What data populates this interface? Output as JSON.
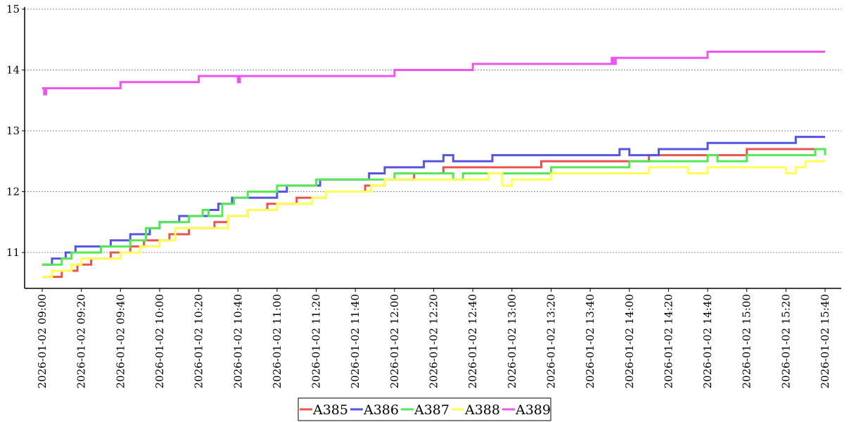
{
  "chart_data": {
    "type": "line",
    "title": "",
    "xlabel": "",
    "ylabel": "",
    "ylim": [
      10.4,
      15
    ],
    "y_ticks": [
      "11",
      "12",
      "13",
      "14",
      "15"
    ],
    "x_ticks": [
      "2026-01-02 09:00",
      "2026-01-02 09:20",
      "2026-01-02 09:40",
      "2026-01-02 10:00",
      "2026-01-02 10:20",
      "2026-01-02 10:40",
      "2026-01-02 11:00",
      "2026-01-02 11:20",
      "2026-01-02 11:40",
      "2026-01-02 12:00",
      "2026-01-02 12:20",
      "2026-01-02 12:40",
      "2026-01-02 13:00",
      "2026-01-02 13:20",
      "2026-01-02 13:40",
      "2026-01-02 14:00",
      "2026-01-02 14:20",
      "2026-01-02 14:40",
      "2026-01-02 15:00",
      "2026-01-02 15:20",
      "2026-01-02 15:40"
    ],
    "grid": "horizontal dotted",
    "legend_position": "bottom-center",
    "series": [
      {
        "name": "A385",
        "color": "#e8554e",
        "points": [
          [
            "2026-01-02 09:00",
            10.6
          ],
          [
            "2026-01-02 09:10",
            10.7
          ],
          [
            "2026-01-02 09:18",
            10.8
          ],
          [
            "2026-01-02 09:25",
            10.9
          ],
          [
            "2026-01-02 09:35",
            11.0
          ],
          [
            "2026-01-02 09:45",
            11.1
          ],
          [
            "2026-01-02 09:52",
            11.2
          ],
          [
            "2026-01-02 10:00",
            11.2
          ],
          [
            "2026-01-02 10:05",
            11.3
          ],
          [
            "2026-01-02 10:15",
            11.4
          ],
          [
            "2026-01-02 10:28",
            11.5
          ],
          [
            "2026-01-02 10:35",
            11.6
          ],
          [
            "2026-01-02 10:45",
            11.7
          ],
          [
            "2026-01-02 10:55",
            11.8
          ],
          [
            "2026-01-02 11:10",
            11.9
          ],
          [
            "2026-01-02 11:25",
            12.0
          ],
          [
            "2026-01-02 11:45",
            12.1
          ],
          [
            "2026-01-02 11:55",
            12.2
          ],
          [
            "2026-01-02 12:10",
            12.3
          ],
          [
            "2026-01-02 12:25",
            12.4
          ],
          [
            "2026-01-02 13:00",
            12.4
          ],
          [
            "2026-01-02 13:15",
            12.5
          ],
          [
            "2026-01-02 13:45",
            12.5
          ],
          [
            "2026-01-02 14:10",
            12.6
          ],
          [
            "2026-01-02 14:40",
            12.6
          ],
          [
            "2026-01-02 15:00",
            12.7
          ],
          [
            "2026-01-02 15:40",
            12.7
          ]
        ]
      },
      {
        "name": "A386",
        "color": "#5555e0",
        "points": [
          [
            "2026-01-02 09:00",
            10.8
          ],
          [
            "2026-01-02 09:05",
            10.9
          ],
          [
            "2026-01-02 09:12",
            11.0
          ],
          [
            "2026-01-02 09:17",
            11.1
          ],
          [
            "2026-01-02 09:30",
            11.1
          ],
          [
            "2026-01-02 09:35",
            11.2
          ],
          [
            "2026-01-02 09:45",
            11.3
          ],
          [
            "2026-01-02 09:55",
            11.4
          ],
          [
            "2026-01-02 10:00",
            11.5
          ],
          [
            "2026-01-02 10:10",
            11.6
          ],
          [
            "2026-01-02 10:25",
            11.7
          ],
          [
            "2026-01-02 10:30",
            11.8
          ],
          [
            "2026-01-02 10:37",
            11.9
          ],
          [
            "2026-01-02 11:00",
            12.0
          ],
          [
            "2026-01-02 11:05",
            12.1
          ],
          [
            "2026-01-02 11:22",
            12.2
          ],
          [
            "2026-01-02 11:40",
            12.2
          ],
          [
            "2026-01-02 11:47",
            12.3
          ],
          [
            "2026-01-02 11:55",
            12.4
          ],
          [
            "2026-01-02 12:15",
            12.5
          ],
          [
            "2026-01-02 12:25",
            12.6
          ],
          [
            "2026-01-02 12:30",
            12.5
          ],
          [
            "2026-01-02 12:45",
            12.5
          ],
          [
            "2026-01-02 12:50",
            12.6
          ],
          [
            "2026-01-02 13:20",
            12.6
          ],
          [
            "2026-01-02 13:55",
            12.7
          ],
          [
            "2026-01-02 14:00",
            12.6
          ],
          [
            "2026-01-02 14:15",
            12.7
          ],
          [
            "2026-01-02 14:35",
            12.7
          ],
          [
            "2026-01-02 14:40",
            12.8
          ],
          [
            "2026-01-02 15:20",
            12.8
          ],
          [
            "2026-01-02 15:25",
            12.9
          ],
          [
            "2026-01-02 15:40",
            12.9
          ]
        ]
      },
      {
        "name": "A387",
        "color": "#55e855",
        "points": [
          [
            "2026-01-02 09:00",
            10.8
          ],
          [
            "2026-01-02 09:10",
            10.9
          ],
          [
            "2026-01-02 09:15",
            11.0
          ],
          [
            "2026-01-02 09:30",
            11.1
          ],
          [
            "2026-01-02 09:45",
            11.2
          ],
          [
            "2026-01-02 09:53",
            11.4
          ],
          [
            "2026-01-02 10:00",
            11.5
          ],
          [
            "2026-01-02 10:05",
            11.5
          ],
          [
            "2026-01-02 10:15",
            11.6
          ],
          [
            "2026-01-02 10:22",
            11.7
          ],
          [
            "2026-01-02 10:25",
            11.6
          ],
          [
            "2026-01-02 10:32",
            11.8
          ],
          [
            "2026-01-02 10:38",
            11.9
          ],
          [
            "2026-01-02 10:45",
            12.0
          ],
          [
            "2026-01-02 11:00",
            12.1
          ],
          [
            "2026-01-02 11:20",
            12.2
          ],
          [
            "2026-01-02 11:55",
            12.2
          ],
          [
            "2026-01-02 12:00",
            12.3
          ],
          [
            "2026-01-02 12:30",
            12.2
          ],
          [
            "2026-01-02 12:35",
            12.3
          ],
          [
            "2026-01-02 13:20",
            12.4
          ],
          [
            "2026-01-02 13:55",
            12.4
          ],
          [
            "2026-01-02 14:00",
            12.5
          ],
          [
            "2026-01-02 14:40",
            12.6
          ],
          [
            "2026-01-02 14:45",
            12.5
          ],
          [
            "2026-01-02 15:00",
            12.6
          ],
          [
            "2026-01-02 15:35",
            12.7
          ],
          [
            "2026-01-02 15:40",
            12.6
          ]
        ]
      },
      {
        "name": "A388",
        "color": "#ffff55",
        "points": [
          [
            "2026-01-02 09:00",
            10.6
          ],
          [
            "2026-01-02 09:05",
            10.7
          ],
          [
            "2026-01-02 09:15",
            10.8
          ],
          [
            "2026-01-02 09:20",
            10.9
          ],
          [
            "2026-01-02 09:35",
            10.9
          ],
          [
            "2026-01-02 09:40",
            11.0
          ],
          [
            "2026-01-02 09:50",
            11.1
          ],
          [
            "2026-01-02 10:00",
            11.2
          ],
          [
            "2026-01-02 10:08",
            11.4
          ],
          [
            "2026-01-02 10:25",
            11.4
          ],
          [
            "2026-01-02 10:35",
            11.6
          ],
          [
            "2026-01-02 10:45",
            11.7
          ],
          [
            "2026-01-02 11:00",
            11.8
          ],
          [
            "2026-01-02 11:18",
            11.9
          ],
          [
            "2026-01-02 11:25",
            12.0
          ],
          [
            "2026-01-02 11:48",
            12.1
          ],
          [
            "2026-01-02 11:55",
            12.2
          ],
          [
            "2026-01-02 12:10",
            12.2
          ],
          [
            "2026-01-02 12:40",
            12.2
          ],
          [
            "2026-01-02 12:48",
            12.3
          ],
          [
            "2026-01-02 12:55",
            12.1
          ],
          [
            "2026-01-02 13:00",
            12.2
          ],
          [
            "2026-01-02 13:20",
            12.3
          ],
          [
            "2026-01-02 13:50",
            12.3
          ],
          [
            "2026-01-02 14:00",
            12.3
          ],
          [
            "2026-01-02 14:10",
            12.4
          ],
          [
            "2026-01-02 14:30",
            12.3
          ],
          [
            "2026-01-02 14:40",
            12.4
          ],
          [
            "2026-01-02 15:00",
            12.4
          ],
          [
            "2026-01-02 15:20",
            12.3
          ],
          [
            "2026-01-02 15:25",
            12.4
          ],
          [
            "2026-01-02 15:30",
            12.5
          ],
          [
            "2026-01-02 15:40",
            12.5
          ]
        ]
      },
      {
        "name": "A389",
        "color": "#ee55ee",
        "points": [
          [
            "2026-01-02 09:00",
            13.7
          ],
          [
            "2026-01-02 09:01",
            13.6
          ],
          [
            "2026-01-02 09:02",
            13.7
          ],
          [
            "2026-01-02 09:40",
            13.8
          ],
          [
            "2026-01-02 10:20",
            13.9
          ],
          [
            "2026-01-02 10:40",
            13.8
          ],
          [
            "2026-01-02 10:41",
            13.9
          ],
          [
            "2026-01-02 12:00",
            14.0
          ],
          [
            "2026-01-02 12:40",
            14.1
          ],
          [
            "2026-01-02 13:50",
            14.1
          ],
          [
            "2026-01-02 13:51",
            14.2
          ],
          [
            "2026-01-02 13:52",
            14.1
          ],
          [
            "2026-01-02 13:53",
            14.2
          ],
          [
            "2026-01-02 14:40",
            14.3
          ],
          [
            "2026-01-02 15:40",
            14.3
          ]
        ]
      }
    ]
  }
}
